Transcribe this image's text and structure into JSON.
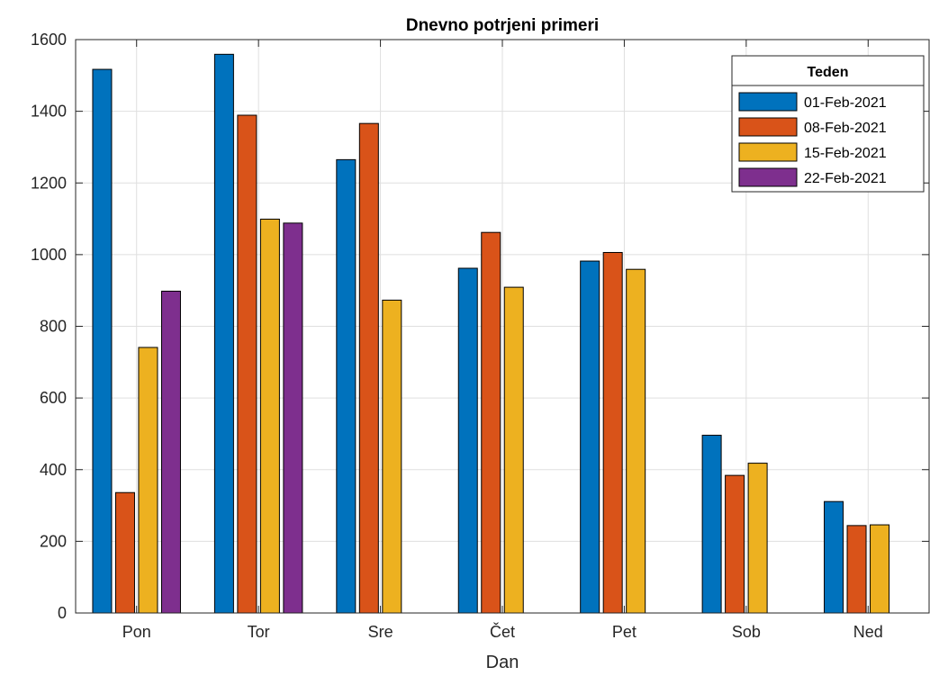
{
  "chart_data": {
    "type": "bar",
    "title": "Dnevno potrjeni primeri",
    "xlabel": "Dan",
    "ylabel": "",
    "categories": [
      "Pon",
      "Tor",
      "Sre",
      "Čet",
      "Pet",
      "Sob",
      "Ned"
    ],
    "ylim": [
      0,
      1600
    ],
    "yticks": [
      0,
      200,
      400,
      600,
      800,
      1000,
      1200,
      1400,
      1600
    ],
    "grid": true,
    "legend": {
      "title": "Teden",
      "position": "top-right"
    },
    "series": [
      {
        "name": "01-Feb-2021",
        "color": "#0072BD",
        "values": [
          1517,
          1559,
          1265,
          962,
          982,
          496,
          311
        ]
      },
      {
        "name": "08-Feb-2021",
        "color": "#D95319",
        "values": [
          336,
          1389,
          1366,
          1062,
          1006,
          384,
          244
        ]
      },
      {
        "name": "15-Feb-2021",
        "color": "#EDB120",
        "values": [
          741,
          1099,
          873,
          909,
          959,
          418,
          246
        ]
      },
      {
        "name": "22-Feb-2021",
        "color": "#7E2F8E",
        "values": [
          898,
          1088,
          null,
          null,
          null,
          null,
          null
        ]
      }
    ]
  }
}
